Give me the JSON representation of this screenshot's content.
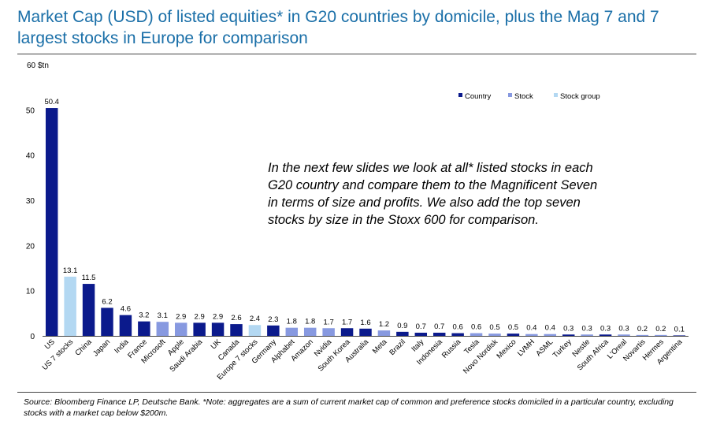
{
  "title": "Market Cap (USD) of listed equities* in G20 countries by domicile, plus the Mag 7 and 7 largest stocks in Europe for comparison",
  "annotation": "In the next few slides we look at all* listed stocks in each G20 country and compare them to the Magnificent Seven in terms of size and profits. We also add the top seven stocks by size in the Stoxx 600 for comparison.",
  "source": "Source: Bloomberg Finance LP, Deutsche Bank. *Note: aggregates are a sum of current market cap of common and preference stocks domiciled in a particular country, excluding stocks with a market cap below $200m.",
  "colors": {
    "Country": "#0b1a8c",
    "Stock": "#8799e0",
    "Stock group": "#b3d8f2"
  },
  "chart_data": {
    "type": "bar",
    "unit_label": "$tn",
    "ylim": [
      0,
      60
    ],
    "yticks": [
      0,
      10,
      20,
      30,
      40,
      50,
      60
    ],
    "grid": false,
    "legend_position": "top-right",
    "legend": [
      "Country",
      "Stock",
      "Stock group"
    ],
    "categories": [
      "US",
      "US 7 stocks",
      "China",
      "Japan",
      "India",
      "France",
      "Microsoft",
      "Apple",
      "Saudi Arabia",
      "UK",
      "Canada",
      "Europe 7 stocks",
      "Germany",
      "Alphabet",
      "Amazon",
      "Nvidia",
      "South Korea",
      "Australia",
      "Meta",
      "Brazil",
      "Italy",
      "Indonesia",
      "Russia",
      "Tesla",
      "Novo Nordisk",
      "Mexico",
      "LVMH",
      "ASML",
      "Turkey",
      "Nestle",
      "South Africa",
      "L'Oreal",
      "Novartis",
      "Hermes",
      "Argentina"
    ],
    "values": [
      50.4,
      13.1,
      11.5,
      6.2,
      4.6,
      3.2,
      3.1,
      2.9,
      2.9,
      2.9,
      2.6,
      2.4,
      2.3,
      1.8,
      1.8,
      1.7,
      1.7,
      1.6,
      1.2,
      0.9,
      0.7,
      0.7,
      0.6,
      0.6,
      0.5,
      0.5,
      0.4,
      0.4,
      0.3,
      0.3,
      0.3,
      0.3,
      0.2,
      0.2,
      0.1
    ],
    "groups": [
      "Country",
      "Stock group",
      "Country",
      "Country",
      "Country",
      "Country",
      "Stock",
      "Stock",
      "Country",
      "Country",
      "Country",
      "Stock group",
      "Country",
      "Stock",
      "Stock",
      "Stock",
      "Country",
      "Country",
      "Stock",
      "Country",
      "Country",
      "Country",
      "Country",
      "Stock",
      "Stock",
      "Country",
      "Stock",
      "Stock",
      "Country",
      "Stock",
      "Country",
      "Stock",
      "Stock",
      "Stock",
      "Country"
    ]
  }
}
